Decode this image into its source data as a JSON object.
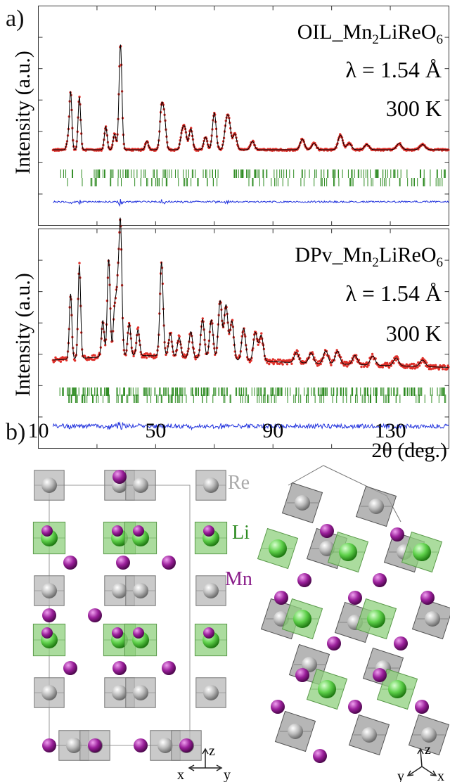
{
  "panel_a": {
    "label": "a)",
    "x_axis": {
      "label": "2θ (deg.)",
      "ticks": [
        10,
        50,
        90,
        130
      ],
      "range": [
        10,
        150
      ]
    },
    "y_axis_label": "Intensity (a.u.)",
    "plots": [
      {
        "title_prefix": "OIL_Mn",
        "sub1": "2",
        "title_mid": "LiReO",
        "sub2": "6",
        "wavelength": "λ = 1.54 Å",
        "temperature": "300 K"
      },
      {
        "title_prefix": "DPv_Mn",
        "sub1": "2",
        "title_mid": "LiReO",
        "sub2": "6",
        "wavelength": "λ = 1.54 Å",
        "temperature": "300 K"
      }
    ],
    "colors": {
      "observed": "#e0302a",
      "calculated": "#000000",
      "difference": "#2233dd",
      "bragg": "#2e8b22"
    }
  },
  "panel_b": {
    "label": "b)",
    "legend": [
      {
        "name": "Re",
        "color": "#a9a9a9"
      },
      {
        "name": "Li",
        "color": "#2e8b22"
      },
      {
        "name": "Mn",
        "color": "#8a1e8a"
      }
    ],
    "axes_left": [
      "z",
      "x",
      "y"
    ],
    "axes_right": [
      "z",
      "y",
      "x"
    ]
  },
  "chart_data": [
    {
      "type": "line",
      "title": "OIL_Mn2LiReO6",
      "xlabel": "2θ (deg.)",
      "ylabel": "Intensity (a.u.)",
      "xlim": [
        10,
        150
      ],
      "grid": false,
      "peaks": [
        {
          "x": 20,
          "y": 0.08
        },
        {
          "x": 21,
          "y": 0.55
        },
        {
          "x": 24,
          "y": 0.5
        },
        {
          "x": 33,
          "y": 0.22
        },
        {
          "x": 36,
          "y": 0.15
        },
        {
          "x": 38,
          "y": 1.0
        },
        {
          "x": 47,
          "y": 0.08
        },
        {
          "x": 52,
          "y": 0.38
        },
        {
          "x": 53,
          "y": 0.28
        },
        {
          "x": 59,
          "y": 0.15
        },
        {
          "x": 60,
          "y": 0.18
        },
        {
          "x": 62,
          "y": 0.2
        },
        {
          "x": 67,
          "y": 0.12
        },
        {
          "x": 70,
          "y": 0.35
        },
        {
          "x": 74,
          "y": 0.2
        },
        {
          "x": 75,
          "y": 0.25
        },
        {
          "x": 77,
          "y": 0.15
        },
        {
          "x": 83,
          "y": 0.08
        },
        {
          "x": 100,
          "y": 0.1
        },
        {
          "x": 104,
          "y": 0.06
        },
        {
          "x": 113,
          "y": 0.14
        },
        {
          "x": 116,
          "y": 0.06
        },
        {
          "x": 122,
          "y": 0.05
        },
        {
          "x": 133,
          "y": 0.06
        },
        {
          "x": 141,
          "y": 0.05
        }
      ]
    },
    {
      "type": "line",
      "title": "DPv_Mn2LiReO6",
      "xlabel": "2θ (deg.)",
      "ylabel": "Intensity (a.u.)",
      "xlim": [
        10,
        150
      ],
      "grid": false,
      "peaks": [
        {
          "x": 21,
          "y": 0.5
        },
        {
          "x": 24,
          "y": 0.72
        },
        {
          "x": 32,
          "y": 0.28
        },
        {
          "x": 34,
          "y": 0.75
        },
        {
          "x": 36,
          "y": 0.35
        },
        {
          "x": 37,
          "y": 0.45
        },
        {
          "x": 38,
          "y": 1.0
        },
        {
          "x": 41,
          "y": 0.25
        },
        {
          "x": 44,
          "y": 0.2
        },
        {
          "x": 52,
          "y": 0.72
        },
        {
          "x": 55,
          "y": 0.18
        },
        {
          "x": 58,
          "y": 0.15
        },
        {
          "x": 62,
          "y": 0.2
        },
        {
          "x": 66,
          "y": 0.3
        },
        {
          "x": 69,
          "y": 0.3
        },
        {
          "x": 72,
          "y": 0.45
        },
        {
          "x": 74,
          "y": 0.42
        },
        {
          "x": 76,
          "y": 0.3
        },
        {
          "x": 80,
          "y": 0.25
        },
        {
          "x": 84,
          "y": 0.22
        },
        {
          "x": 86,
          "y": 0.2
        },
        {
          "x": 98,
          "y": 0.08
        },
        {
          "x": 103,
          "y": 0.08
        },
        {
          "x": 108,
          "y": 0.1
        },
        {
          "x": 112,
          "y": 0.1
        },
        {
          "x": 118,
          "y": 0.07
        },
        {
          "x": 124,
          "y": 0.07
        },
        {
          "x": 132,
          "y": 0.06
        },
        {
          "x": 141,
          "y": 0.05
        }
      ]
    }
  ]
}
